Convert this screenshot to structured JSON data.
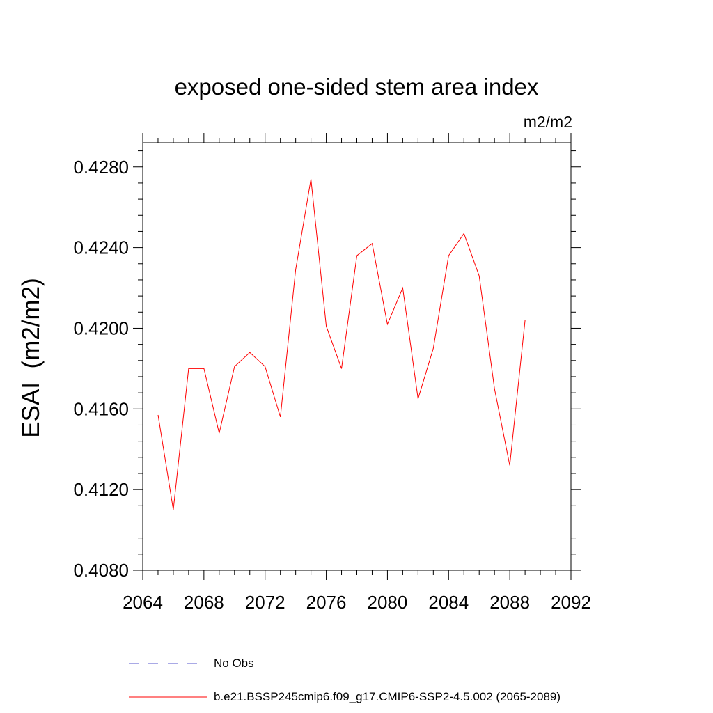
{
  "chart_data": {
    "type": "line",
    "title": "exposed one-sided stem area index",
    "units": "m2/m2",
    "ylabel": "ESAI  (m2/m2)",
    "xlabel": "",
    "xlim": [
      2064,
      2092
    ],
    "ylim": [
      0.408,
      0.4292
    ],
    "x_ticks": [
      "2064",
      "2068",
      "2072",
      "2076",
      "2080",
      "2084",
      "2088",
      "2092"
    ],
    "y_ticks": [
      "0.4080",
      "0.4120",
      "0.4160",
      "0.4200",
      "0.4240",
      "0.4280"
    ],
    "series": [
      {
        "name": "b.e21.BSSP245cmip6.f09_g17.CMIP6-SSP2-4.5.002 (2065-2089)",
        "color": "#ff0000",
        "x": [
          2065,
          2066,
          2067,
          2068,
          2069,
          2070,
          2071,
          2072,
          2073,
          2074,
          2075,
          2076,
          2077,
          2078,
          2079,
          2080,
          2081,
          2082,
          2083,
          2084,
          2085,
          2086,
          2087,
          2088,
          2089
        ],
        "values": [
          0.4157,
          0.411,
          0.418,
          0.418,
          0.4148,
          0.4181,
          0.4188,
          0.4181,
          0.4156,
          0.4229,
          0.4274,
          0.4201,
          0.418,
          0.4236,
          0.4242,
          0.4202,
          0.422,
          0.4165,
          0.419,
          0.4236,
          0.4247,
          0.4226,
          0.417,
          0.4132,
          0.4204
        ]
      }
    ],
    "legend": [
      {
        "label": "No Obs",
        "style": "dashed",
        "color": "#5555cc"
      },
      {
        "label": "b.e21.BSSP245cmip6.f09_g17.CMIP6-SSP2-4.5.002 (2065-2089)",
        "style": "solid",
        "color": "#ff0000"
      }
    ]
  }
}
